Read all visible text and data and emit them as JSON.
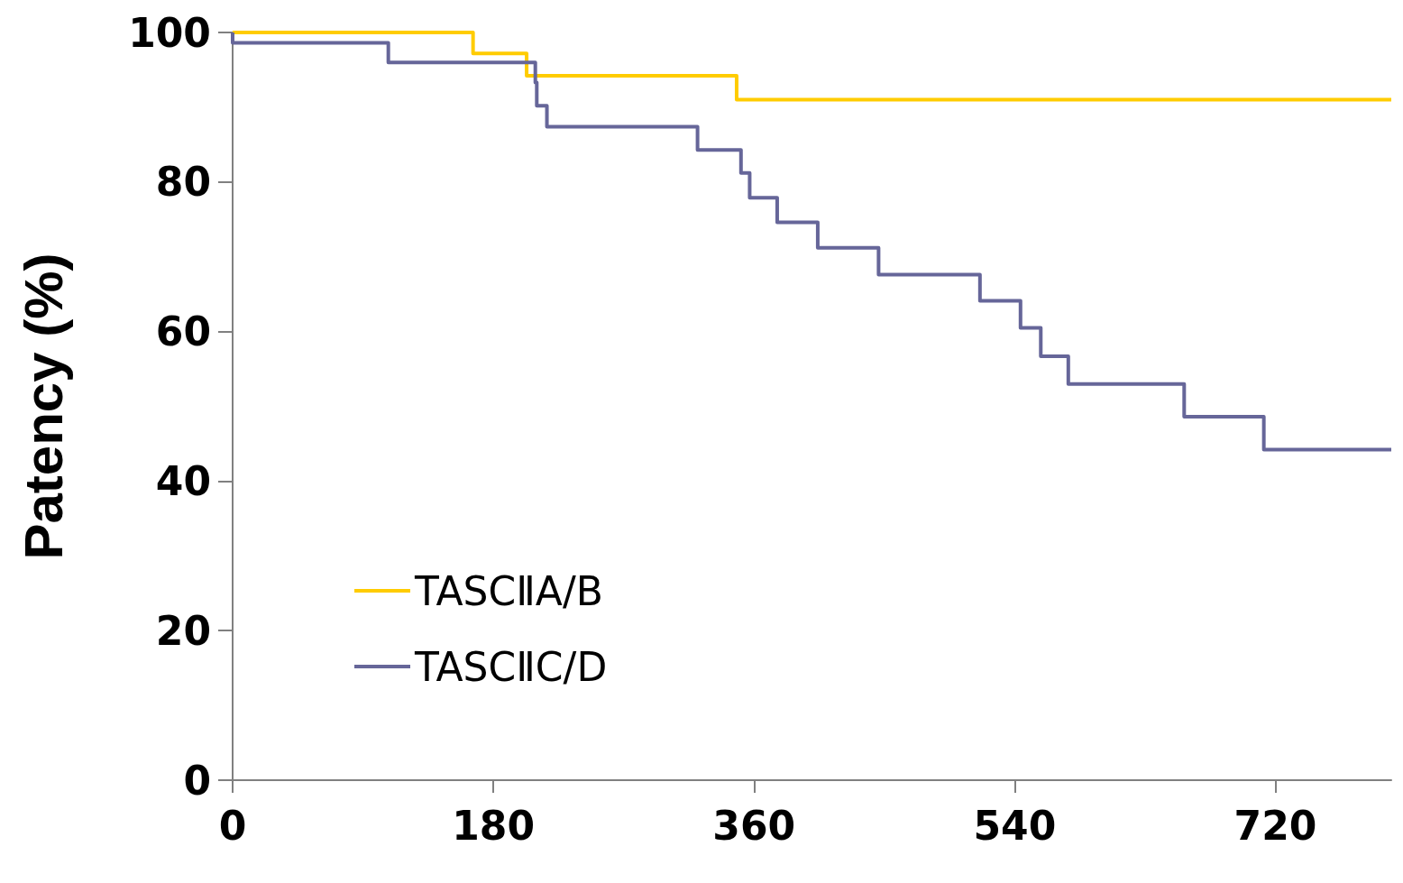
{
  "chart_data": {
    "type": "step",
    "ylabel": "Patency (%)",
    "xlim": [
      0,
      800
    ],
    "xticks": [
      0,
      180,
      360,
      540,
      720
    ],
    "ylim": [
      0,
      100
    ],
    "yticks": [
      0,
      20,
      40,
      60,
      80,
      100
    ],
    "grid": false,
    "legend": "bottom left",
    "marker": "none",
    "line_style": "solid",
    "series": [
      {
        "name": "TASCⅡA/B",
        "color": "#ffcc00",
        "x": [
          0,
          166,
          203,
          348,
          800
        ],
        "values": [
          100,
          97.2,
          94.2,
          91,
          91
        ]
      },
      {
        "name": "TASCⅡC/D",
        "color": "#666699",
        "x": [
          0,
          0,
          107.5,
          209,
          210,
          217,
          321,
          351,
          357,
          376,
          404,
          446,
          516,
          544,
          558,
          577,
          657,
          712,
          800
        ],
        "values": [
          100,
          98.6,
          96,
          93.3,
          90.2,
          87.4,
          84.3,
          81.2,
          77.9,
          74.6,
          71.2,
          67.6,
          64.1,
          60.5,
          56.7,
          53,
          48.6,
          44.2,
          44.2
        ]
      }
    ]
  }
}
